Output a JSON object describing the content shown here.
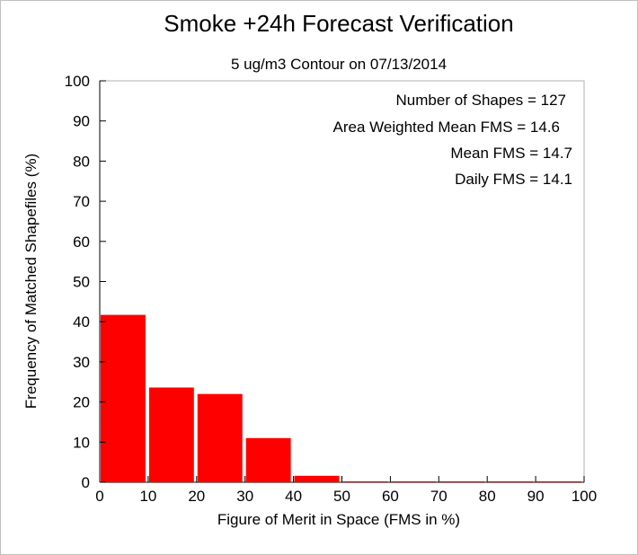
{
  "chart_data": {
    "type": "bar",
    "title": "Smoke +24h Forecast Verification",
    "subtitle": "5 ug/m3 Contour on 07/13/2014",
    "xlabel": "Figure of Merit in Space (FMS in %)",
    "ylabel": "Frequency of Matched Shapefiles (%)",
    "xlim": [
      0,
      100
    ],
    "ylim": [
      0,
      100
    ],
    "xticks": [
      0,
      10,
      20,
      30,
      40,
      50,
      60,
      70,
      80,
      90,
      100
    ],
    "yticks": [
      0,
      10,
      20,
      30,
      40,
      50,
      60,
      70,
      80,
      90,
      100
    ],
    "bins": [
      [
        0,
        10
      ],
      [
        10,
        20
      ],
      [
        20,
        30
      ],
      [
        30,
        40
      ],
      [
        40,
        50
      ],
      [
        50,
        60
      ],
      [
        60,
        70
      ],
      [
        70,
        80
      ],
      [
        80,
        90
      ],
      [
        90,
        100
      ]
    ],
    "values": [
      41.7,
      23.6,
      22.0,
      11.0,
      1.6,
      0,
      0,
      0,
      0,
      0
    ],
    "bar_color": "#ff0000",
    "grid": false,
    "annotations": [
      "Number of Shapes = 127",
      "Area Weighted Mean FMS = 14.6",
      "Mean FMS = 14.7",
      "Daily FMS = 14.1"
    ]
  }
}
